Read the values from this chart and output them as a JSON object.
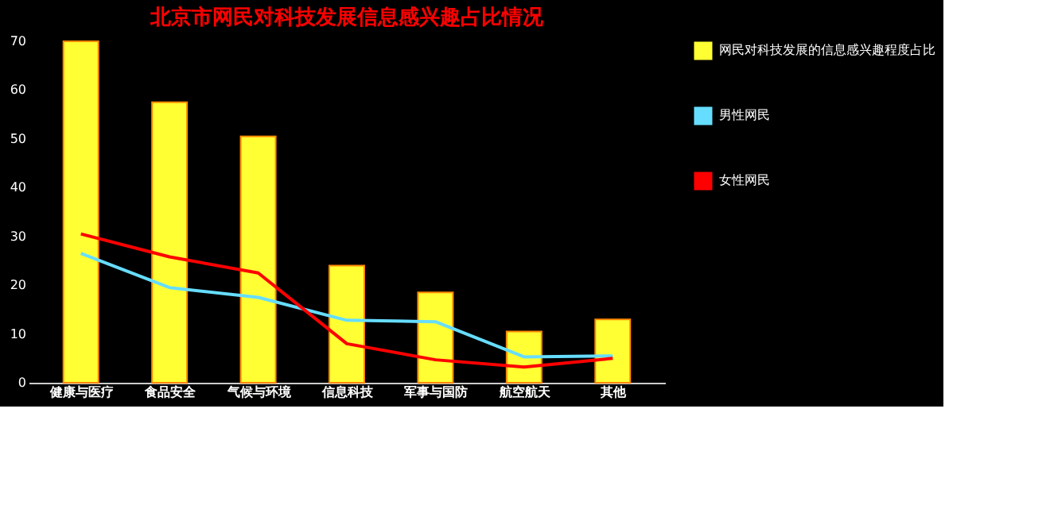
{
  "chart_data": {
    "type": "bar",
    "title": "北京市网民对科技发展信息感兴趣占比情况",
    "categories": [
      "健康与医疗",
      "食品安全",
      "气候与环境",
      "信息科技",
      "军事与国防",
      "航空航天",
      "其他"
    ],
    "series": [
      {
        "name": "网民对科技发展的信息感兴趣程度占比",
        "color": "#ffff33",
        "values": [
          70,
          57.5,
          50.5,
          24,
          18.5,
          10.5,
          13
        ]
      },
      {
        "name": "男性网民",
        "type": "line",
        "color": "#66ddff",
        "values": [
          26.5,
          19.5,
          17.5,
          12.8,
          12.5,
          5.3,
          5.5
        ]
      },
      {
        "name": "女性网民",
        "type": "line",
        "color": "#ff0000",
        "values": [
          30.5,
          25.8,
          22.5,
          8,
          4.7,
          3.2,
          5
        ]
      }
    ],
    "ylim": [
      0,
      70
    ],
    "yticks": [
      0,
      10,
      20,
      30,
      40,
      50,
      60,
      70
    ],
    "grid": false,
    "legend": "right",
    "marker": "none",
    "line_style": "solid"
  }
}
